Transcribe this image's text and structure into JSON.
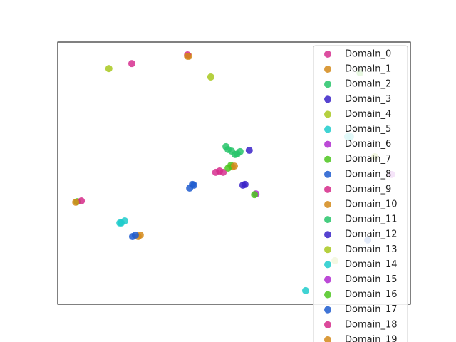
{
  "chart_data": {
    "type": "scatter",
    "xlim": [
      0,
      100
    ],
    "ylim": [
      0,
      100
    ],
    "legend": "upper right",
    "series": [
      {
        "name": "Domain_0",
        "color": "#d62f8f",
        "x": [
          21.0,
          44.8,
          46.9
        ],
        "values": [
          91.8,
          50.3,
          50.3
        ]
      },
      {
        "name": "Domain_1",
        "color": "#d4891a",
        "x": [
          37.2,
          49.5
        ],
        "values": [
          94.6,
          52.4
        ]
      },
      {
        "name": "Domain_2",
        "color": "#27c46a",
        "x": [
          47.7,
          49.3,
          50.9,
          51.7
        ],
        "values": [
          60.1,
          58.4,
          57.3,
          58.2
        ]
      },
      {
        "name": "Domain_3",
        "color": "#3a22c8",
        "x": [
          54.3,
          53.1
        ],
        "values": [
          58.7,
          45.7
        ]
      },
      {
        "name": "Domain_4",
        "color": "#a8c81e",
        "x": [
          14.5,
          43.4,
          78.6
        ],
        "values": [
          89.9,
          86.7,
          16.6
        ]
      },
      {
        "name": "Domain_5",
        "color": "#1ecbcb",
        "x": [
          18.0,
          19.0,
          83.0,
          70.3
        ],
        "values": [
          31.0,
          31.8,
          63.9,
          5.2
        ]
      },
      {
        "name": "Domain_6",
        "color": "#b02ad0",
        "x": [
          56.2
        ],
        "values": [
          42.1
        ]
      },
      {
        "name": "Domain_7",
        "color": "#4cc51e",
        "x": [
          55.8,
          48.3,
          5.5
        ],
        "values": [
          41.8,
          51.9,
          39.1
        ]
      },
      {
        "name": "Domain_8",
        "color": "#1e5ccf",
        "x": [
          38.6,
          37.4,
          21.2,
          87.9
        ],
        "values": [
          45.4,
          44.3,
          25.8,
          24.5
        ]
      },
      {
        "name": "Domain_9",
        "color": "#d62a8a",
        "x": [
          6.7,
          36.8
        ],
        "values": [
          39.4,
          95.1
        ]
      },
      {
        "name": "Domain_10",
        "color": "#d4891a",
        "x": [
          5.1,
          22.8,
          23.4
        ],
        "values": [
          38.9,
          25.8,
          26.4
        ]
      },
      {
        "name": "Domain_11",
        "color": "#27c46a",
        "x": [
          50.3,
          48.3
        ],
        "values": [
          57.1,
          59.0
        ]
      },
      {
        "name": "Domain_12",
        "color": "#3a22c8",
        "x": [
          52.5
        ],
        "values": [
          45.4
        ]
      },
      {
        "name": "Domain_13",
        "color": "#a8c81e",
        "x": [
          89.9
        ],
        "values": [
          56.3
        ]
      },
      {
        "name": "Domain_14",
        "color": "#1ecbcb",
        "x": [
          17.6,
          82.2
        ],
        "values": [
          31.0,
          63.9
        ]
      },
      {
        "name": "Domain_15",
        "color": "#b02ad0",
        "x": [
          94.7
        ],
        "values": [
          49.5
        ]
      },
      {
        "name": "Domain_16",
        "color": "#4cc51e",
        "x": [
          49.1,
          85.7
        ],
        "values": [
          53.0,
          88.3
        ]
      },
      {
        "name": "Domain_17",
        "color": "#1e5ccf",
        "x": [
          22.0,
          38.2
        ],
        "values": [
          26.4,
          45.7
        ]
      },
      {
        "name": "Domain_18",
        "color": "#d62a8a",
        "x": [
          45.9
        ],
        "values": [
          50.8
        ]
      },
      {
        "name": "Domain_19",
        "color": "#d4891a",
        "x": [
          50.1,
          36.8
        ],
        "values": [
          52.7,
          94.6
        ]
      }
    ]
  }
}
